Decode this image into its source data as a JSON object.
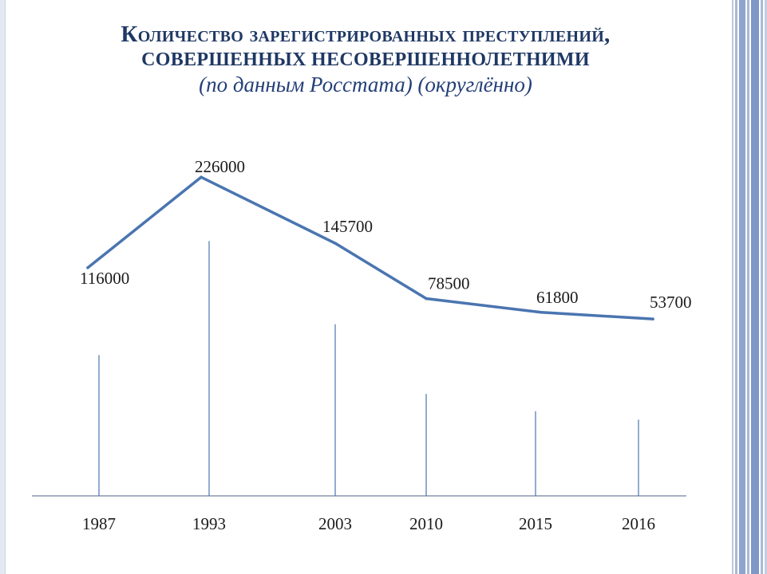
{
  "title": {
    "line1": "Количество зарегистрированных преступлений,",
    "line2": "совершенных несовершеннолетними",
    "line3": "(по данным Росстата) (округлённо)"
  },
  "colors": {
    "line": "#4a75b0",
    "drop_line": "#4a75b0",
    "axis": "#8a96b0",
    "title": "#1f3864"
  },
  "chart_data": {
    "type": "line",
    "title": "Количество зарегистрированных преступлений, совершенных несовершеннолетними (по данным Росстата) (округлённо)",
    "categories": [
      "1987",
      "1993",
      "2003",
      "2010",
      "2015",
      "2016"
    ],
    "series": [
      {
        "values": [
          116000,
          226000,
          145700,
          78500,
          61800,
          53700
        ],
        "labels": [
          "116000",
          "226000",
          "145700",
          "78500",
          "61800",
          "53700"
        ]
      }
    ],
    "xlabel": "",
    "ylabel": "",
    "grid": false,
    "legend": "none"
  }
}
